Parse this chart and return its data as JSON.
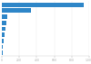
{
  "values": [
    940,
    330,
    60,
    48,
    38,
    28,
    20,
    14,
    10
  ],
  "bar_color": "#2e86c8",
  "background_color": "#ffffff",
  "xlim": [
    0,
    1000
  ],
  "tick_color": "#aaaaaa",
  "grid_color": "#e8e8e8",
  "spine_color": "#cccccc",
  "bar_height": 0.72,
  "xtick_fontsize": 2.2
}
